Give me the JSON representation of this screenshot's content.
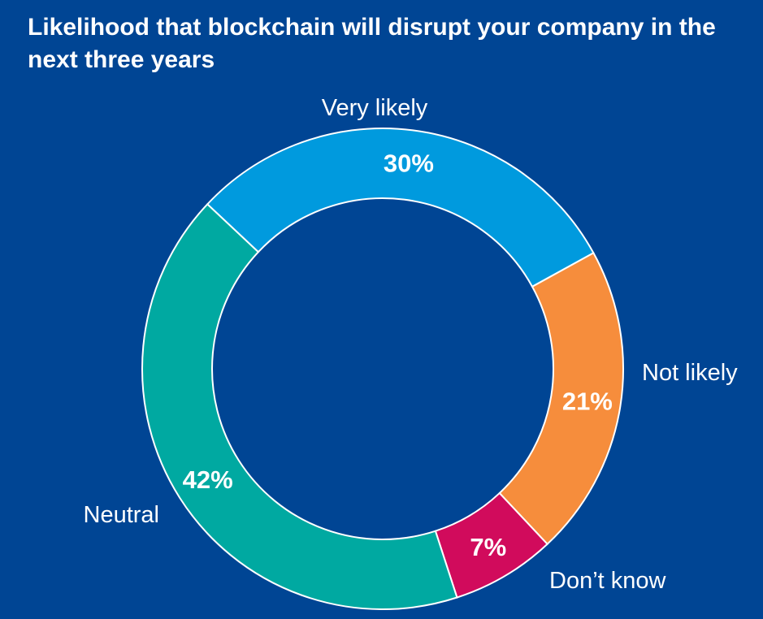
{
  "chart_data": {
    "type": "pie",
    "title": "Likelihood that blockchain will disrupt your company in the next three years",
    "hole": "donut",
    "slices": [
      {
        "label": "Very likely",
        "value": 30,
        "value_label": "30%",
        "color": "#009ADE"
      },
      {
        "label": "Not likely",
        "value": 21,
        "value_label": "21%",
        "color": "#F68D3C"
      },
      {
        "label": "Don’t know",
        "value": 7,
        "value_label": "7%",
        "color": "#D10B5C"
      },
      {
        "label": "Neutral",
        "value": 42,
        "value_label": "42%",
        "color": "#00A9A1"
      }
    ],
    "background_color": "#004594",
    "separator_color": "#ffffff"
  }
}
